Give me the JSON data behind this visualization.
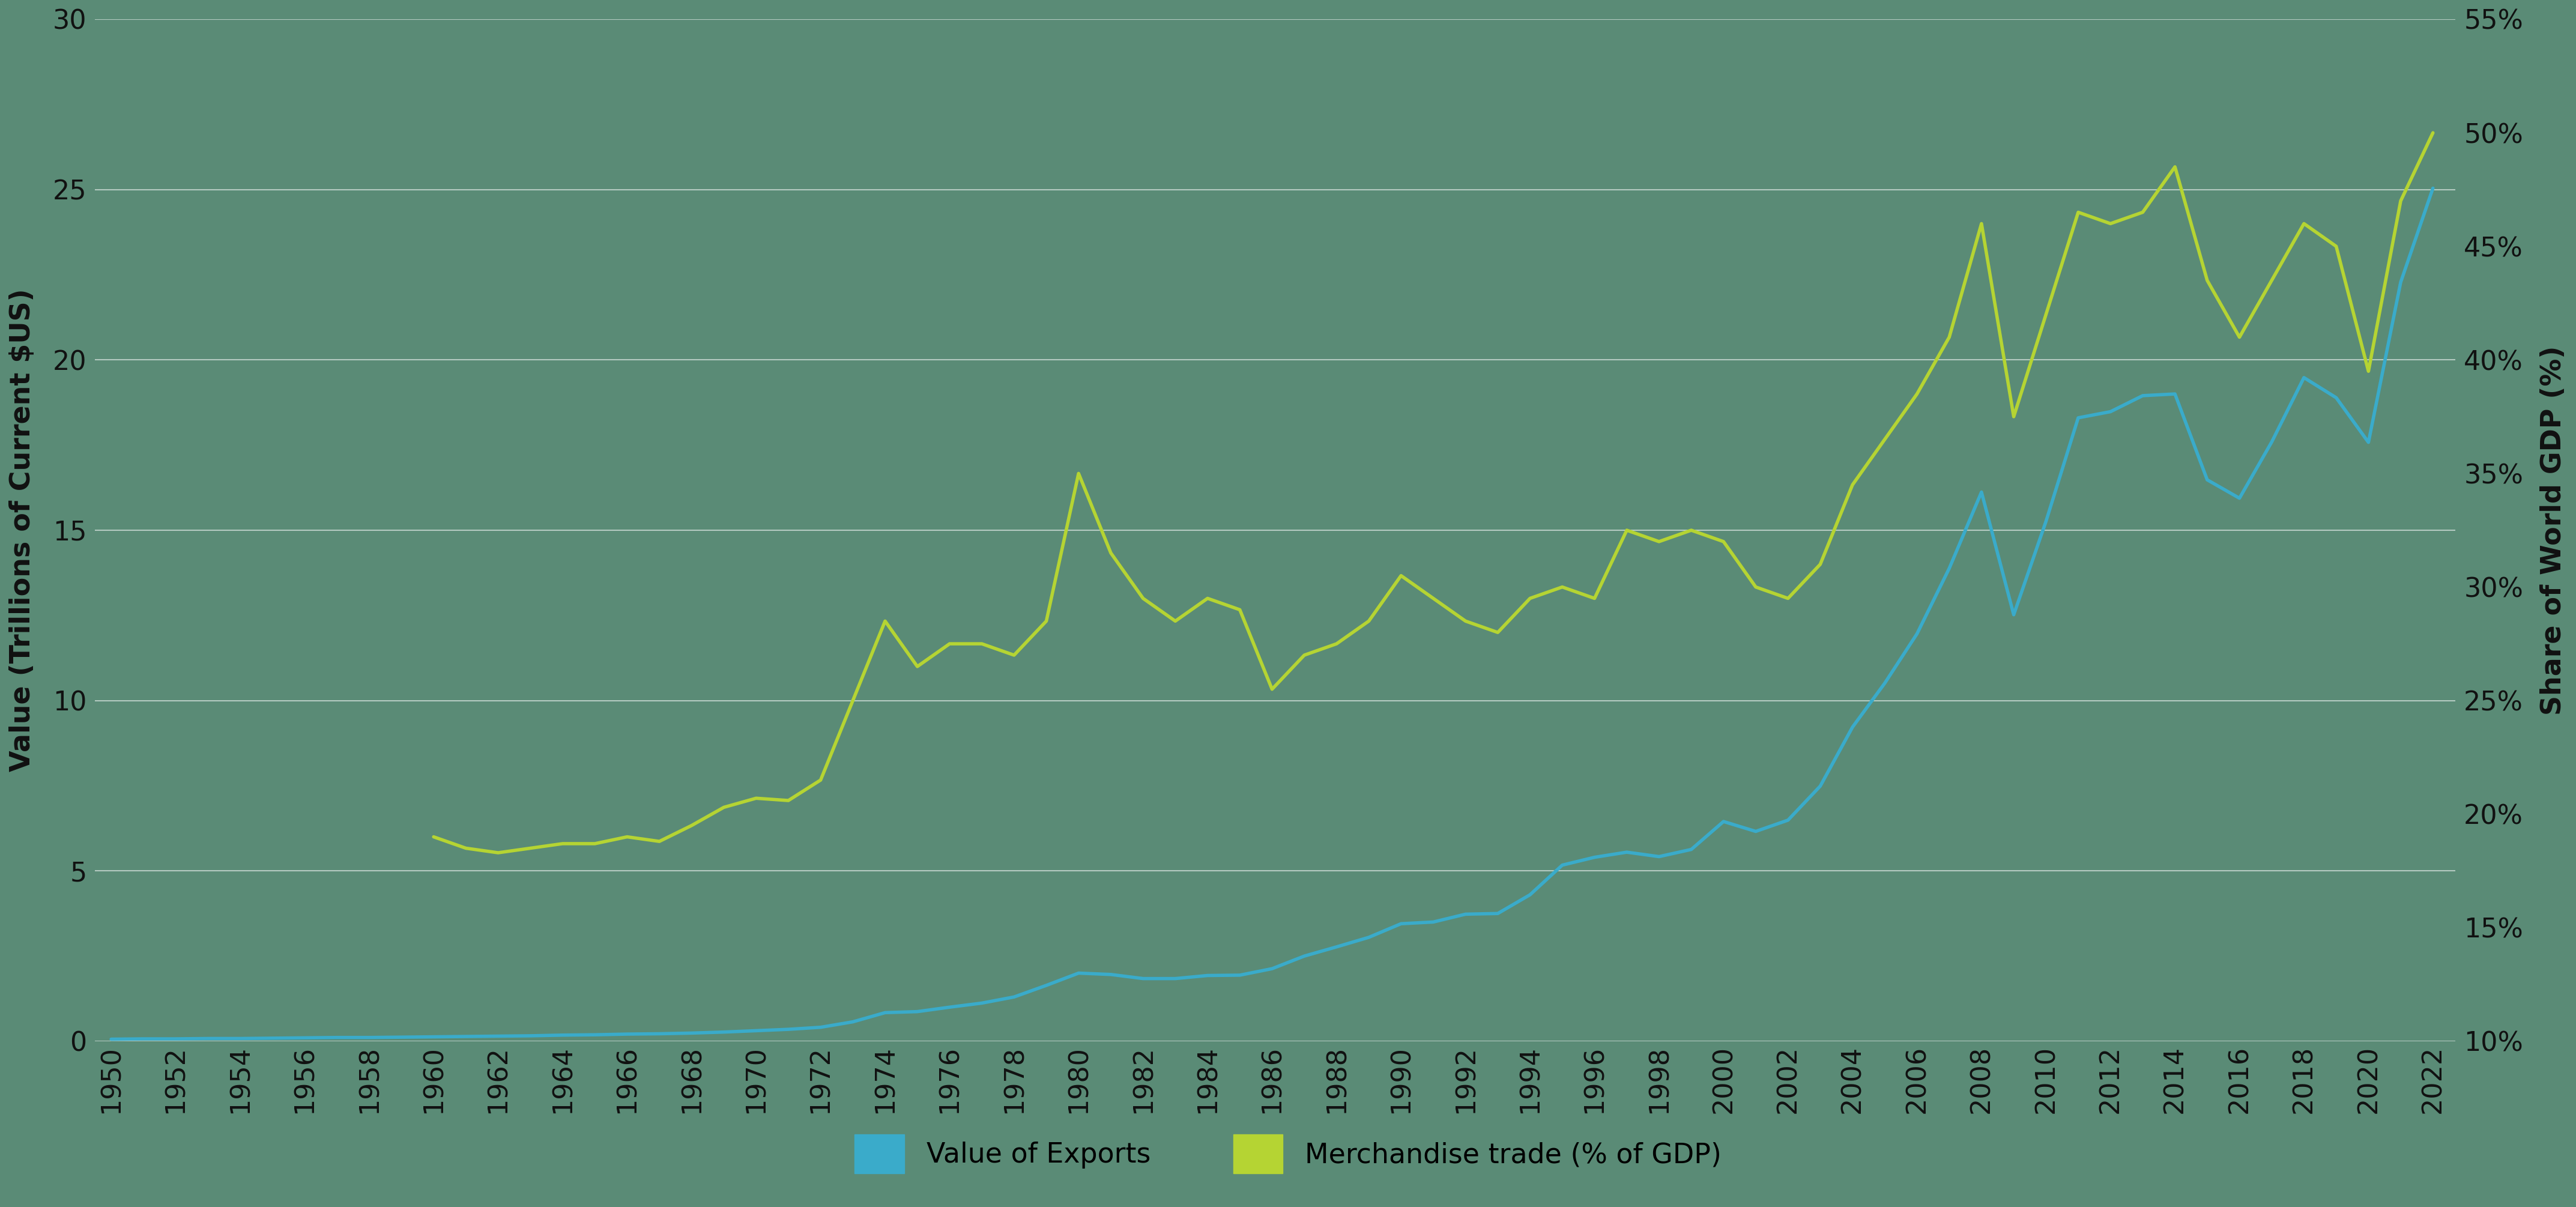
{
  "background_color": "#5a8b76",
  "plot_bg_color": "#5a8b76",
  "grid_color": "#ffffff",
  "line_color_exports": "#3aabca",
  "line_color_gdp": "#b5d433",
  "ylabel_left": "Value (Trillions of Current $US)",
  "ylabel_right": "Share of World GDP (%)",
  "legend_exports": "Value of Exports",
  "legend_gdp": "Merchandise trade (% of GDP)",
  "ylim_left": [
    0,
    30
  ],
  "ylim_right": [
    10,
    55
  ],
  "yticks_left": [
    0,
    5,
    10,
    15,
    20,
    25,
    30
  ],
  "yticks_right": [
    10,
    15,
    20,
    25,
    30,
    35,
    40,
    45,
    50,
    55
  ],
  "years_exports": [
    1950,
    1951,
    1952,
    1953,
    1954,
    1955,
    1956,
    1957,
    1958,
    1959,
    1960,
    1961,
    1962,
    1963,
    1964,
    1965,
    1966,
    1967,
    1968,
    1969,
    1970,
    1971,
    1972,
    1973,
    1974,
    1975,
    1976,
    1977,
    1978,
    1979,
    1980,
    1981,
    1982,
    1983,
    1984,
    1985,
    1986,
    1987,
    1988,
    1989,
    1990,
    1991,
    1992,
    1993,
    1994,
    1995,
    1996,
    1997,
    1998,
    1999,
    2000,
    2001,
    2002,
    2003,
    2004,
    2005,
    2006,
    2007,
    2008,
    2009,
    2010,
    2011,
    2012,
    2013,
    2014,
    2015,
    2016,
    2017,
    2018,
    2019,
    2020,
    2021,
    2022
  ],
  "values_exports": [
    0.06,
    0.07,
    0.07,
    0.08,
    0.08,
    0.09,
    0.1,
    0.11,
    0.11,
    0.12,
    0.13,
    0.14,
    0.15,
    0.16,
    0.18,
    0.19,
    0.21,
    0.22,
    0.24,
    0.27,
    0.31,
    0.35,
    0.41,
    0.57,
    0.84,
    0.87,
    1.0,
    1.12,
    1.3,
    1.64,
    2.0,
    1.96,
    1.84,
    1.84,
    1.93,
    1.94,
    2.13,
    2.5,
    2.77,
    3.05,
    3.45,
    3.5,
    3.73,
    3.75,
    4.3,
    5.17,
    5.4,
    5.55,
    5.42,
    5.63,
    6.45,
    6.16,
    6.49,
    7.49,
    9.22,
    10.51,
    11.96,
    13.88,
    16.12,
    12.52,
    15.26,
    18.3,
    18.48,
    18.95,
    19.0,
    16.48,
    15.94,
    17.59,
    19.48,
    18.89,
    17.58,
    22.28,
    25.04
  ],
  "years_gdp": [
    1960,
    1961,
    1962,
    1963,
    1964,
    1965,
    1966,
    1967,
    1968,
    1969,
    1970,
    1971,
    1972,
    1973,
    1974,
    1975,
    1976,
    1977,
    1978,
    1979,
    1980,
    1981,
    1982,
    1983,
    1984,
    1985,
    1986,
    1987,
    1988,
    1989,
    1990,
    1991,
    1992,
    1993,
    1994,
    1995,
    1996,
    1997,
    1998,
    1999,
    2000,
    2001,
    2002,
    2003,
    2004,
    2005,
    2006,
    2007,
    2008,
    2009,
    2010,
    2011,
    2012,
    2013,
    2014,
    2015,
    2016,
    2017,
    2018,
    2019,
    2020,
    2021,
    2022
  ],
  "values_gdp": [
    19.0,
    18.5,
    18.3,
    18.5,
    18.7,
    18.7,
    19.0,
    18.8,
    19.5,
    20.3,
    20.7,
    20.6,
    21.5,
    25.0,
    28.5,
    26.5,
    27.5,
    27.5,
    27.0,
    28.5,
    35.0,
    31.5,
    29.5,
    28.5,
    29.5,
    29.0,
    25.5,
    27.0,
    27.5,
    28.5,
    30.5,
    29.5,
    28.5,
    28.0,
    29.5,
    30.0,
    29.5,
    32.5,
    32.0,
    32.5,
    32.0,
    30.0,
    29.5,
    31.0,
    34.5,
    36.5,
    38.5,
    41.0,
    46.0,
    37.5,
    42.0,
    46.5,
    46.0,
    46.5,
    48.5,
    43.5,
    41.0,
    43.5,
    46.0,
    45.0,
    39.5,
    47.0,
    50.0
  ]
}
